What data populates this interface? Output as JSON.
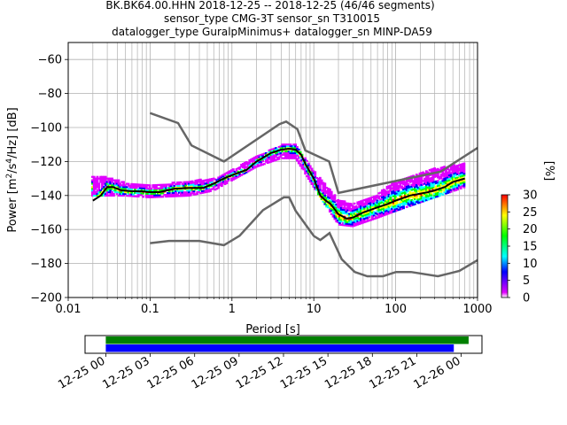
{
  "chart_data": [
    {
      "type": "heatmap",
      "title_lines": [
        "BK.BK64.00.HHN   2018-12-25 -- 2018-12-25  (46/46 segments)",
        "sensor_type CMG-3T sensor_sn T310015",
        "datalogger_type GuralpMinimus+ datalogger_sn MINP-DA59"
      ],
      "xlabel": "Period [s]",
      "ylabel_parts": [
        "Power [m",
        "2",
        "/s",
        "4",
        "/Hz] [dB]"
      ],
      "x_scale": "log",
      "xlim": [
        0.01,
        1000
      ],
      "ylim": [
        -200,
        -50
      ],
      "x_ticks": [
        0.01,
        0.1,
        1,
        10,
        100,
        1000
      ],
      "x_tick_labels": [
        "0.01",
        "0.1",
        "1",
        "10",
        "100",
        "1000"
      ],
      "y_ticks": [
        -200,
        -180,
        -160,
        -140,
        -120,
        -100,
        -80,
        -60
      ],
      "y_tick_labels": [
        "−200",
        "−180",
        "−160",
        "−140",
        "−120",
        "−100",
        "−80",
        "−60"
      ],
      "grid": true,
      "colorbar": {
        "label": "[%]",
        "range": [
          0,
          30
        ],
        "ticks": [
          0,
          5,
          10,
          15,
          20,
          25,
          30
        ],
        "tick_labels": [
          "0",
          "5",
          "10",
          "15",
          "20",
          "25",
          "30"
        ],
        "colors": [
          "#ffffff",
          "#e000ff",
          "#0000ff",
          "#00ffff",
          "#00ff00",
          "#ffff00",
          "#ff0000"
        ]
      },
      "noise_models": [
        {
          "name": "high",
          "color": "#666666",
          "points": [
            [
              0.1,
              -91.5
            ],
            [
              0.22,
              -97.4
            ],
            [
              0.32,
              -110.5
            ],
            [
              0.8,
              -120
            ],
            [
              3.8,
              -98
            ],
            [
              4.6,
              -96.5
            ],
            [
              6.3,
              -101
            ],
            [
              7.9,
              -113.5
            ],
            [
              15.4,
              -120
            ],
            [
              20,
              -138.5
            ],
            [
              354,
              -126
            ],
            [
              1000,
              -112
            ]
          ]
        },
        {
          "name": "low",
          "color": "#666666",
          "points": [
            [
              0.1,
              -168
            ],
            [
              0.17,
              -166.7
            ],
            [
              0.4,
              -166.7
            ],
            [
              0.8,
              -169.2
            ],
            [
              1.24,
              -163.7
            ],
            [
              2.4,
              -148.6
            ],
            [
              4.3,
              -141.1
            ],
            [
              5,
              -141.1
            ],
            [
              6,
              -149
            ],
            [
              10,
              -163.8
            ],
            [
              12,
              -166.2
            ],
            [
              15.6,
              -162.1
            ],
            [
              21.9,
              -177.5
            ],
            [
              31.6,
              -185
            ],
            [
              45,
              -187.5
            ],
            [
              70,
              -187.5
            ],
            [
              101,
              -185
            ],
            [
              154,
              -185
            ],
            [
              328,
              -187.5
            ],
            [
              600,
              -184.4
            ],
            [
              1000,
              -178
            ]
          ]
        }
      ],
      "mode_curve": {
        "color": "#000000",
        "points": [
          [
            0.02,
            -143
          ],
          [
            0.025,
            -140
          ],
          [
            0.03,
            -135
          ],
          [
            0.035,
            -135
          ],
          [
            0.045,
            -137
          ],
          [
            0.06,
            -137.5
          ],
          [
            0.08,
            -137.5
          ],
          [
            0.1,
            -138
          ],
          [
            0.13,
            -138
          ],
          [
            0.2,
            -136
          ],
          [
            0.3,
            -135.5
          ],
          [
            0.45,
            -135.5
          ],
          [
            0.6,
            -133
          ],
          [
            0.8,
            -130
          ],
          [
            1,
            -128
          ],
          [
            1.5,
            -125
          ],
          [
            2,
            -120
          ],
          [
            3,
            -115
          ],
          [
            4,
            -113
          ],
          [
            5,
            -112.5
          ],
          [
            6,
            -113
          ],
          [
            7,
            -116
          ],
          [
            8,
            -122
          ],
          [
            10,
            -130
          ],
          [
            12,
            -140
          ],
          [
            14,
            -143
          ],
          [
            16,
            -145
          ],
          [
            20,
            -151
          ],
          [
            25,
            -153.5
          ],
          [
            30,
            -153
          ],
          [
            40,
            -150
          ],
          [
            60,
            -147
          ],
          [
            80,
            -145
          ],
          [
            100,
            -143
          ],
          [
            150,
            -140
          ],
          [
            250,
            -138
          ],
          [
            300,
            -137
          ],
          [
            400,
            -135
          ],
          [
            500,
            -132
          ],
          [
            700,
            -130
          ]
        ]
      },
      "percentile_spread": [
        {
          "period": 0.03,
          "low": -139,
          "high": -130
        },
        {
          "period": 0.05,
          "low": -139,
          "high": -133
        },
        {
          "period": 0.1,
          "low": -140,
          "high": -135
        },
        {
          "period": 0.3,
          "low": -139,
          "high": -132
        },
        {
          "period": 0.6,
          "low": -136,
          "high": -131
        },
        {
          "period": 1,
          "low": -130,
          "high": -126
        },
        {
          "period": 2,
          "low": -122,
          "high": -118
        },
        {
          "period": 4,
          "low": -117,
          "high": -111
        },
        {
          "period": 6,
          "low": -117,
          "high": -111
        },
        {
          "period": 10,
          "low": -134,
          "high": -126
        },
        {
          "period": 20,
          "low": -156,
          "high": -143
        },
        {
          "period": 30,
          "low": -157,
          "high": -146
        },
        {
          "period": 60,
          "low": -152,
          "high": -140
        },
        {
          "period": 100,
          "low": -148,
          "high": -132
        },
        {
          "period": 300,
          "low": -140,
          "high": -125
        },
        {
          "period": 700,
          "low": -134,
          "high": -122
        }
      ]
    },
    {
      "type": "bar",
      "subtype": "timeline",
      "xlim": [
        "2018-12-24T22:36",
        "2018-12-26T01:24"
      ],
      "x_tick_labels": [
        "12-25 00",
        "12-25 03",
        "12-25 06",
        "12-25 09",
        "12-25 12",
        "12-25 15",
        "12-25 18",
        "12-25 21",
        "12-26 00"
      ],
      "bars": [
        {
          "color": "#008000",
          "start": "2018-12-25T00:00",
          "end": "2018-12-25T24:30"
        },
        {
          "color": "#0000ff",
          "start": "2018-12-25T00:00",
          "end": "2018-12-25T23:30"
        }
      ]
    }
  ]
}
